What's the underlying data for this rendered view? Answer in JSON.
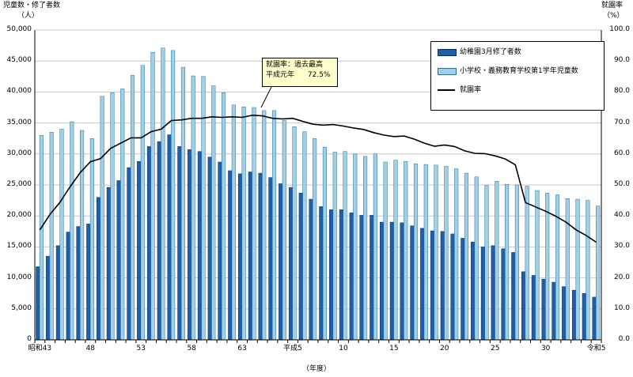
{
  "chart_data": {
    "type": "bar",
    "ylabel": "児童数・修了者数",
    "yunit": "（人）",
    "y2label": "就園率",
    "y2unit": "（%）",
    "xlabel": "（年度）",
    "ylim": [
      0,
      50000
    ],
    "y2lim": [
      0,
      100
    ],
    "yticks": [
      "0",
      "5,000",
      "10,000",
      "15,000",
      "20,000",
      "25,000",
      "30,000",
      "35,000",
      "40,000",
      "45,000",
      "50,000"
    ],
    "y2ticks": [
      "0.0",
      "10.0",
      "20.0",
      "30.0",
      "40.0",
      "50.0",
      "60.0",
      "70.0",
      "80.0",
      "90.0",
      "100.0"
    ],
    "xticks": [
      {
        "index": 0,
        "label": "昭和43"
      },
      {
        "index": 5,
        "label": "48"
      },
      {
        "index": 10,
        "label": "53"
      },
      {
        "index": 15,
        "label": "58"
      },
      {
        "index": 20,
        "label": "63"
      },
      {
        "index": 25,
        "label": "平成5"
      },
      {
        "index": 30,
        "label": "10"
      },
      {
        "index": 35,
        "label": "15"
      },
      {
        "index": 40,
        "label": "20"
      },
      {
        "index": 45,
        "label": "25"
      },
      {
        "index": 50,
        "label": "30"
      },
      {
        "index": 55,
        "label": "令和5"
      }
    ],
    "legend_position": "top-right",
    "series": [
      {
        "name": "幼稚園3月修了者数",
        "kind": "bar",
        "color": "#1f5fa8",
        "values": [
          11800,
          13500,
          15200,
          17400,
          18300,
          18700,
          23000,
          24600,
          25700,
          27800,
          28800,
          31200,
          32000,
          33100,
          31200,
          30700,
          30400,
          29500,
          28700,
          27300,
          26800,
          27100,
          26900,
          26200,
          25200,
          24600,
          23700,
          22700,
          21500,
          21000,
          21000,
          20500,
          20100,
          20100,
          19000,
          19000,
          18900,
          18400,
          18000,
          17600,
          17500,
          17100,
          16400,
          15800,
          15000,
          15200,
          14700,
          14100,
          11000,
          10400,
          9800,
          9300,
          8600,
          8000,
          7500,
          6900
        ]
      },
      {
        "name": "小学校・義務教育学校第1学年児童数",
        "kind": "bar",
        "color": "#9fd0e8",
        "values": [
          33000,
          33500,
          34000,
          35200,
          33800,
          32500,
          39300,
          39900,
          40500,
          42700,
          44300,
          46400,
          47100,
          46700,
          44000,
          42600,
          42500,
          41000,
          39900,
          37900,
          37600,
          37500,
          37000,
          37000,
          35400,
          34400,
          33600,
          32500,
          31100,
          30300,
          30400,
          30000,
          29600,
          30000,
          28700,
          29000,
          28800,
          28400,
          28300,
          28200,
          28000,
          27600,
          26900,
          26300,
          24900,
          25600,
          25100,
          25000,
          24800,
          24100,
          23700,
          23400,
          22800,
          22700,
          22500,
          21600
        ]
      },
      {
        "name": "就園率",
        "kind": "line",
        "color": "#000000",
        "values": [
          35.5,
          40.5,
          44.5,
          49.5,
          54.0,
          57.5,
          58.5,
          61.8,
          63.5,
          65.2,
          65.2,
          67.2,
          68.0,
          70.8,
          71.0,
          71.5,
          71.5,
          72.0,
          71.8,
          72.0,
          71.8,
          72.5,
          72.3,
          71.5,
          71.3,
          71.5,
          70.5,
          69.6,
          69.3,
          69.5,
          69.0,
          68.4,
          67.9,
          66.9,
          66.1,
          65.6,
          65.8,
          64.8,
          63.5,
          62.5,
          62.9,
          62.4,
          61.0,
          60.2,
          60.1,
          59.4,
          58.4,
          56.5,
          44.3,
          42.9,
          41.5,
          39.9,
          38.0,
          35.5,
          33.7,
          31.5
        ]
      }
    ],
    "annotation": {
      "title": "就園率：過去最高",
      "era": "平成元年",
      "value": "72.5%"
    }
  }
}
